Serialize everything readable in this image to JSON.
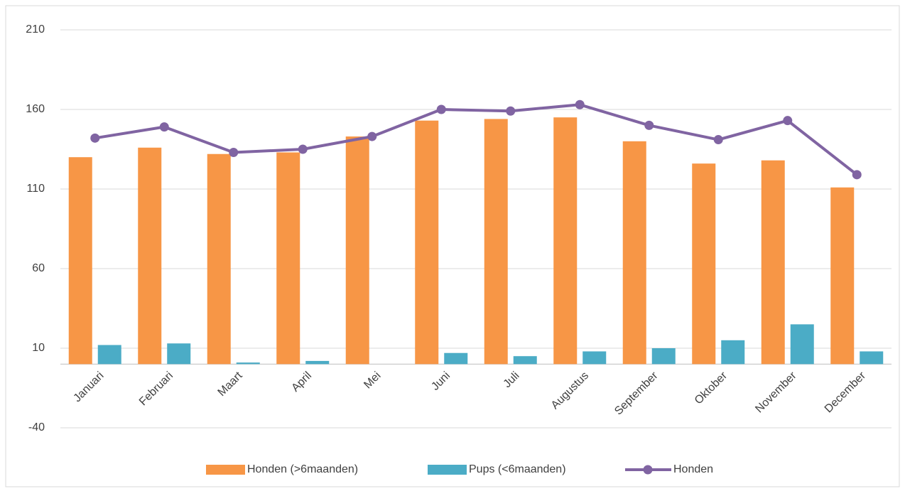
{
  "chart_data": {
    "type": "bar",
    "categories": [
      "Januari",
      "Februari",
      "Maart",
      "April",
      "Mei",
      "Juni",
      "Juli",
      "Augustus",
      "September",
      "Oktober",
      "November",
      "December"
    ],
    "series": [
      {
        "name": "Honden (>6maanden)",
        "color": "#f79646",
        "type": "bar",
        "values": [
          130,
          136,
          132,
          133,
          143,
          153,
          154,
          155,
          140,
          126,
          128,
          111
        ]
      },
      {
        "name": "Pups (<6maanden)",
        "color": "#4bacc6",
        "type": "bar",
        "values": [
          12,
          13,
          1,
          2,
          0,
          7,
          5,
          8,
          10,
          15,
          25,
          8
        ]
      },
      {
        "name": "Honden",
        "color": "#8064a2",
        "type": "line",
        "values": [
          142,
          149,
          133,
          135,
          143,
          160,
          159,
          163,
          150,
          141,
          153,
          119
        ]
      }
    ],
    "ylim": [
      -40,
      210
    ],
    "yticks": [
      -40,
      10,
      60,
      110,
      160,
      210
    ],
    "grid": true,
    "legend": "bottom"
  }
}
